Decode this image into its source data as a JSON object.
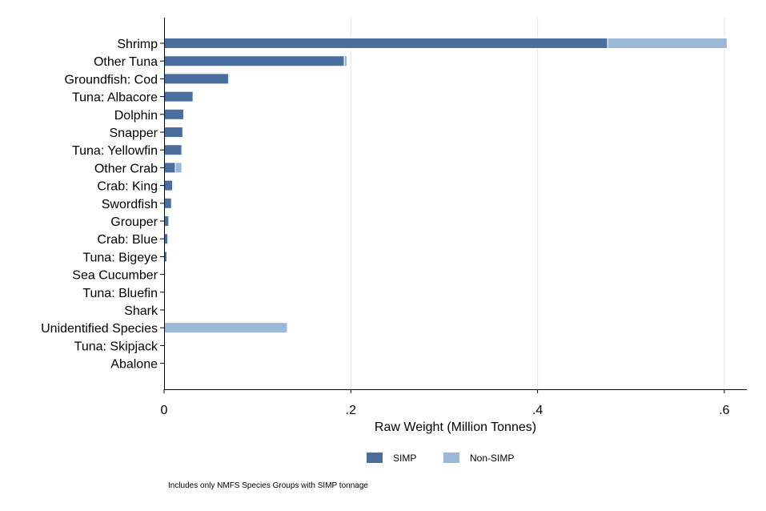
{
  "chart_data": {
    "type": "bar",
    "orientation": "horizontal",
    "stacked": true,
    "categories": [
      "Shrimp",
      "Other Tuna",
      "Groundfish: Cod",
      "Tuna: Albacore",
      "Dolphin",
      "Snapper",
      "Tuna: Yellowfin",
      "Other Crab",
      "Crab: King",
      "Swordfish",
      "Grouper",
      "Crab: Blue",
      "Tuna: Bigeye",
      "Sea Cucumber",
      "Tuna: Bluefin",
      "Shark",
      "Unidentified Species",
      "Tuna: Skipjack",
      "Abalone"
    ],
    "series": [
      {
        "name": "SIMP",
        "color": "#4a6f9e",
        "values": [
          0.475,
          0.193,
          0.069,
          0.031,
          0.021,
          0.02,
          0.019,
          0.012,
          0.009,
          0.008,
          0.005,
          0.004,
          0.003,
          0.001,
          0,
          0,
          0,
          0,
          0
        ]
      },
      {
        "name": "Non-SIMP",
        "color": "#9bb8d9",
        "values": [
          0.128,
          0.003,
          0.001,
          0,
          0,
          0,
          0.001,
          0.007,
          0.001,
          0.001,
          0,
          0,
          0.001,
          0,
          0,
          0,
          0.132,
          0,
          0
        ]
      }
    ],
    "xlabel": "Raw Weight (Million Tonnes)",
    "ylabel": "",
    "xlim": [
      0,
      0.62
    ],
    "xticks": [
      0,
      0.2,
      0.4,
      0.6
    ],
    "xtick_labels": [
      "0",
      ".2",
      ".4",
      ".6"
    ],
    "grid": "vertical",
    "legend_position": "bottom",
    "note": "Includes only NMFS Species Groups with SIMP tonnage"
  }
}
